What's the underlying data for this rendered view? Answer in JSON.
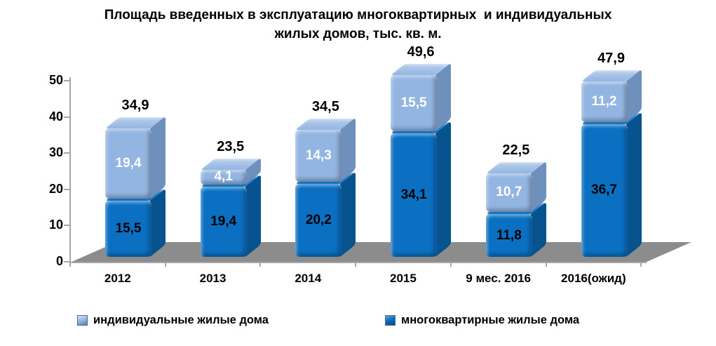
{
  "title": {
    "line1": "Площадь введенных в эксплуатацию многоквартирных  и индивидуальных",
    "line2": "жилых домов, тыс. кв. м."
  },
  "chart_data": {
    "type": "bar",
    "stacked": true,
    "3d": true,
    "title": "Площадь введенных в эксплуатацию многоквартирных и индивидуальных жилых домов, тыс. кв. м.",
    "categories": [
      "2012",
      "2013",
      "2014",
      "2015",
      "9 мес. 2016",
      "2016(ожид)"
    ],
    "series": [
      {
        "name": "многоквартирные жилые дома",
        "values": [
          15.5,
          19.4,
          20.2,
          34.1,
          11.8,
          36.7
        ],
        "labels": [
          "15,5",
          "19,4",
          "20,2",
          "34,1",
          "11,8",
          "36,7"
        ],
        "face": "#0b70c2",
        "side": "#07538f",
        "top": "#3a8ad0",
        "label_color": "#000000"
      },
      {
        "name": "индивидуальные жилые дома",
        "values": [
          19.4,
          4.1,
          14.3,
          15.5,
          10.7,
          11.2
        ],
        "labels": [
          "19,4",
          "4,1",
          "14,3",
          "15,5",
          "10,7",
          "11,2"
        ],
        "face": "#93b5e1",
        "side": "#6f90bd",
        "top": "#b7cdec",
        "label_color": "#ffffff"
      }
    ],
    "totals": [
      "34,9",
      "23,5",
      "34,5",
      "49,6",
      "22,5",
      "47,9"
    ],
    "y_ticks": [
      0,
      10,
      20,
      30,
      40,
      50
    ],
    "ylim": [
      0,
      50
    ],
    "grid": false,
    "legend": [
      {
        "label": "индивидуальные жилые дома",
        "swatch": "light-blue-cube-icon"
      },
      {
        "label": "многоквартирные жилые дома",
        "swatch": "dark-blue-cube-icon"
      }
    ],
    "legend_position": "bottom",
    "colors": {
      "floor": "#8c8c8c",
      "axis": "#a6a6a6",
      "text": "#000000",
      "background": "#ffffff"
    }
  }
}
